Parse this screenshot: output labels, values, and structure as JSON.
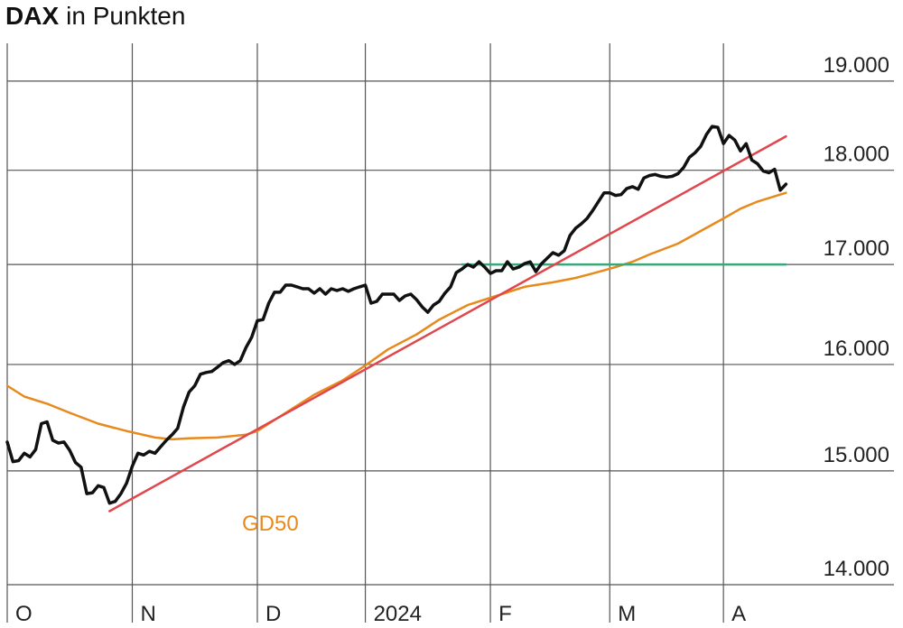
{
  "chart_data": {
    "type": "line",
    "title": "DAX",
    "subtitle": "in Punkten",
    "ylim": [
      14000,
      19440
    ],
    "log_scale": true,
    "yticks": [
      {
        "value": 14000,
        "label": "14.000"
      },
      {
        "value": 15000,
        "label": "15.000"
      },
      {
        "value": 16000,
        "label": "16.000"
      },
      {
        "value": 17000,
        "label": "17.000"
      },
      {
        "value": 18000,
        "label": "18.000"
      },
      {
        "value": 19000,
        "label": "19.000"
      }
    ],
    "xlim": [
      0,
      156
    ],
    "xticks": [
      {
        "value": 0,
        "label": "O"
      },
      {
        "value": 22,
        "label": "N"
      },
      {
        "value": 44,
        "label": "D"
      },
      {
        "value": 63,
        "label": "2024"
      },
      {
        "value": 85,
        "label": "F"
      },
      {
        "value": 106,
        "label": "M"
      },
      {
        "value": 126,
        "label": "A"
      }
    ],
    "grid": true,
    "series": [
      {
        "color": "#111111",
        "x": [
          0,
          1,
          2,
          3,
          4,
          5,
          6,
          7,
          8,
          9,
          10,
          11,
          12,
          13,
          14,
          15,
          16,
          17,
          18,
          19,
          20,
          21,
          22,
          23,
          24,
          25,
          26,
          27,
          28,
          29,
          30,
          31,
          32,
          33,
          34,
          35,
          36,
          37,
          38,
          39,
          40,
          41,
          42,
          43,
          44,
          45,
          46,
          47,
          48,
          49,
          50,
          51,
          52,
          53,
          54,
          55,
          56,
          57,
          58,
          59,
          60,
          61,
          62,
          63,
          64,
          65,
          66,
          67,
          68,
          69,
          70,
          71,
          72,
          73,
          74,
          75,
          76,
          77,
          78,
          79,
          80,
          81,
          82,
          83,
          84,
          85,
          86,
          87,
          88,
          89,
          90,
          91,
          92,
          93,
          94,
          95,
          96,
          97,
          98,
          99,
          100,
          101,
          102,
          103,
          104,
          105,
          106,
          107,
          108,
          109,
          110,
          111,
          112,
          113,
          114,
          115,
          116,
          117,
          118,
          119,
          120,
          121,
          122,
          123,
          124,
          125,
          126,
          127,
          128,
          129,
          130,
          131,
          132,
          133,
          134,
          135,
          136,
          137
        ],
        "values": [
          15265,
          15085,
          15094,
          15162,
          15128,
          15196,
          15436,
          15453,
          15282,
          15256,
          15265,
          15188,
          15077,
          15034,
          14795,
          14803,
          14866,
          14850,
          14709,
          14725,
          14795,
          14890,
          15043,
          15162,
          15145,
          15179,
          15162,
          15222,
          15282,
          15333,
          15393,
          15590,
          15735,
          15795,
          15906,
          15923,
          15932,
          15974,
          16018,
          16037,
          16000,
          16037,
          16165,
          16266,
          16431,
          16441,
          16606,
          16716,
          16716,
          16789,
          16789,
          16771,
          16752,
          16752,
          16707,
          16752,
          16697,
          16752,
          16734,
          16752,
          16725,
          16752,
          16771,
          16789,
          16606,
          16624,
          16697,
          16697,
          16697,
          16633,
          16679,
          16697,
          16642,
          16569,
          16514,
          16587,
          16624,
          16707,
          16771,
          16917,
          16954,
          17000,
          16972,
          17028,
          16972,
          16908,
          16936,
          16936,
          17028,
          16954,
          16972,
          17009,
          17028,
          16927,
          17009,
          17066,
          17123,
          17095,
          17142,
          17302,
          17378,
          17425,
          17481,
          17566,
          17661,
          17755,
          17755,
          17727,
          17736,
          17802,
          17821,
          17793,
          17915,
          17943,
          17953,
          17934,
          17925,
          17934,
          17962,
          18030,
          18141,
          18192,
          18263,
          18394,
          18485,
          18475,
          18293,
          18384,
          18333,
          18212,
          18293,
          18111,
          18071,
          17991,
          17972,
          18010,
          17783,
          17849
        ]
      },
      {
        "name": "GD50",
        "color": "#e8891c",
        "x": [
          0,
          3,
          7,
          11,
          16,
          21,
          26,
          29,
          32,
          37,
          42,
          44,
          49,
          54,
          59,
          63,
          67,
          72,
          76,
          81,
          86,
          91,
          96,
          100,
          103,
          107,
          110,
          113,
          118,
          122,
          126,
          129,
          132,
          135,
          137
        ],
        "values": [
          15795,
          15692,
          15624,
          15538,
          15436,
          15367,
          15307,
          15290,
          15299,
          15307,
          15333,
          15367,
          15538,
          15709,
          15846,
          15991,
          16147,
          16294,
          16441,
          16587,
          16679,
          16771,
          16817,
          16862,
          16908,
          16972,
          17028,
          17104,
          17217,
          17349,
          17481,
          17585,
          17661,
          17717,
          17755
        ]
      },
      {
        "color": "#e0474c",
        "x": [
          18,
          137
        ],
        "values": [
          14638,
          18374
        ]
      },
      {
        "color": "#3aa67a",
        "x": [
          80,
          137
        ],
        "values": [
          17000,
          17000
        ]
      }
    ]
  }
}
